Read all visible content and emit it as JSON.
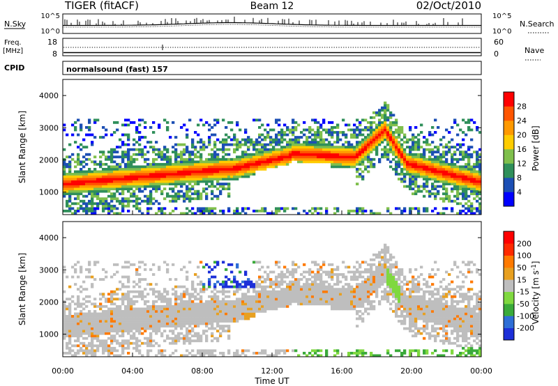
{
  "header": {
    "radar": "TIGER (fitACF)",
    "beam": "Beam 12",
    "date": "02/Oct/2010"
  },
  "strip_labels": {
    "nsky": "N.Sky",
    "nsky_top": "10^5",
    "nsky_bottom": "10^0",
    "nsearch": "N.Search",
    "nsearch_top": "10^5",
    "nsearch_bottom": "10^0",
    "freq_line1": "Freq.",
    "freq_line2": "[MHz]",
    "freq_top": "18",
    "freq_bottom": "8",
    "nave": "Nave",
    "nave_top": "60",
    "nave_bottom": "0",
    "cpid": "CPID",
    "cpid_value": "normalsound (fast) 157"
  },
  "colors": {
    "power_scale": [
      "#0000ff",
      "#1c4fb4",
      "#2f8f5a",
      "#7fbf4c",
      "#ffcc00",
      "#ff9900",
      "#ff5500",
      "#ff0000"
    ],
    "velocity_scale": [
      "#1c2fd8",
      "#2e6ed6",
      "#3aaa3a",
      "#7fd83f",
      "#bebebe",
      "#e8a020",
      "#ff7a00",
      "#ff2a00",
      "#ff0000"
    ]
  },
  "chart_data": [
    {
      "type": "heatmap",
      "name": "power",
      "ylabel": "Slant Range [km]",
      "yticks": [
        "1000",
        "2000",
        "3000",
        "4000"
      ],
      "ylim": [
        300,
        4500
      ],
      "colorbar_label": "Power [dB]",
      "colorbar_ticks": [
        "4",
        "8",
        "12",
        "16",
        "20",
        "24",
        "28"
      ],
      "clim": [
        0,
        32
      ]
    },
    {
      "type": "heatmap",
      "name": "velocity",
      "ylabel": "Slant Range [km]",
      "yticks": [
        "1000",
        "2000",
        "3000",
        "4000"
      ],
      "ylim": [
        300,
        4500
      ],
      "colorbar_label": "Velocity [m s^-1]",
      "colorbar_ticks": [
        "-200",
        "-100",
        "-50",
        "-15",
        "15",
        "50",
        "100",
        "200"
      ]
    }
  ],
  "xaxis": {
    "label": "Time UT",
    "ticks": [
      "00:00",
      "04:00",
      "08:00",
      "12:00",
      "16:00",
      "20:00",
      "00:00"
    ]
  }
}
